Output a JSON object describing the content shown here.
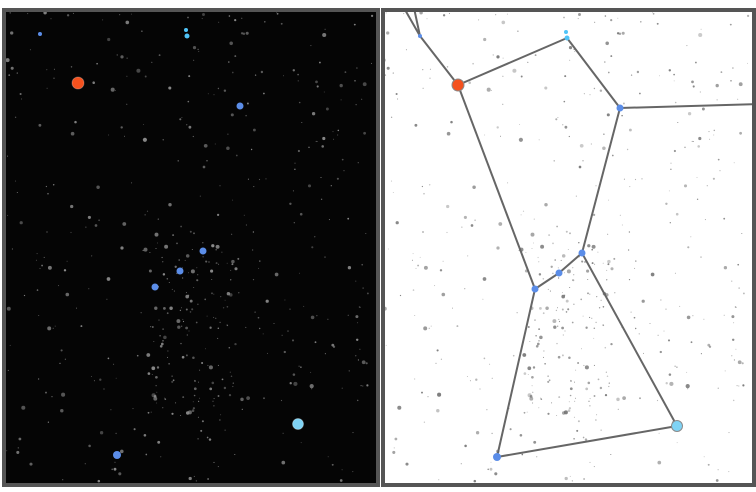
{
  "scene": {
    "description_free": true,
    "colors": {
      "sky_background": "#050505",
      "chart_background": "#ffffff",
      "frame_border": "#555555",
      "star_field_dot_dark": "#8a8a8a",
      "star_field_dot_light": "#6f6f6f",
      "constellation_line": "#666666",
      "star_red": "#f4511e",
      "star_blue": "#5b8de8",
      "star_light_blue": "#7fd3f5",
      "star_cyan": "#4fc3f7"
    }
  },
  "stars": [
    {
      "id": "red-star",
      "color": "star_red",
      "left": [
        78,
        83
      ],
      "right": [
        458,
        85
      ],
      "r": 6
    },
    {
      "id": "shoulder-star",
      "color": "star_blue",
      "left": [
        240,
        106
      ],
      "right": [
        620,
        108
      ],
      "r": 3.5
    },
    {
      "id": "belt-star-1",
      "color": "star_blue",
      "left": [
        155,
        287
      ],
      "right": [
        535,
        289
      ],
      "r": 3.5
    },
    {
      "id": "belt-star-2",
      "color": "star_blue",
      "left": [
        180,
        271
      ],
      "right": [
        559,
        273
      ],
      "r": 3.5
    },
    {
      "id": "belt-star-3",
      "color": "star_blue",
      "left": [
        203,
        251
      ],
      "right": [
        582,
        253
      ],
      "r": 3.5
    },
    {
      "id": "rigel-star",
      "color": "star_light_blue",
      "left": [
        298,
        424
      ],
      "right": [
        677,
        426
      ],
      "r": 5.5
    },
    {
      "id": "saiph-star",
      "color": "star_blue",
      "left": [
        117,
        455
      ],
      "right": [
        497,
        457
      ],
      "r": 4
    },
    {
      "id": "head-star",
      "color": "star_cyan",
      "left": [
        187,
        36
      ],
      "right": [
        567,
        38
      ],
      "r": 2.5
    },
    {
      "id": "head-star-small",
      "color": "star_cyan",
      "left": [
        186,
        30
      ],
      "right": [
        566,
        32
      ],
      "r": 2
    },
    {
      "id": "arm-star",
      "color": "star_blue",
      "left": [
        40,
        34
      ],
      "right": [
        420,
        36
      ],
      "r": 2
    }
  ],
  "constellation_lines": [
    [
      "red-star",
      "head-star"
    ],
    [
      "head-star",
      "shoulder-star"
    ],
    [
      "red-star",
      "belt-star-1"
    ],
    [
      "shoulder-star",
      "belt-star-3"
    ],
    [
      "belt-star-1",
      "belt-star-2"
    ],
    [
      "belt-star-2",
      "belt-star-3"
    ],
    [
      "belt-star-1",
      "saiph-star"
    ],
    [
      "belt-star-3",
      "rigel-star"
    ],
    [
      "saiph-star",
      "rigel-star"
    ],
    [
      "red-star",
      "arm-star"
    ]
  ],
  "star_field": {
    "count": 520,
    "seed": 12345
  }
}
